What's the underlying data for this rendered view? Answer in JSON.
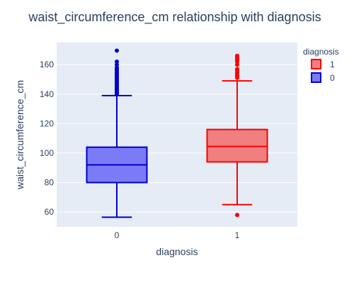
{
  "chart_data": {
    "type": "box",
    "title": "waist_circumference_cm relationship with diagnosis",
    "xlabel": "diagnosis",
    "ylabel": "waist_circumference_cm",
    "categories": [
      "0",
      "1"
    ],
    "ylim": [
      50,
      175
    ],
    "yticks": [
      60,
      80,
      100,
      120,
      140,
      160
    ],
    "grid": true,
    "legend": {
      "title": "diagnosis",
      "placement": "top-right"
    },
    "series": [
      {
        "name": "1",
        "category": "1",
        "color": "#ff0000",
        "fill": "#f08080",
        "whisker_low": 65,
        "q1": 94,
        "median": 104.5,
        "q3": 116,
        "whisker_high": 149,
        "outliers": [
          58,
          151,
          152,
          153,
          154,
          155,
          156,
          157,
          160,
          162,
          163,
          164,
          165,
          166
        ]
      },
      {
        "name": "0",
        "category": "0",
        "color": "#0000cd",
        "fill": "#7b7bf5",
        "whisker_low": 56.5,
        "q1": 80,
        "median": 92,
        "q3": 104,
        "whisker_high": 139,
        "outliers": [
          140,
          141,
          142,
          143,
          144,
          145,
          146,
          147,
          148,
          149,
          150,
          151,
          152,
          153,
          154,
          155,
          156,
          157,
          158,
          160,
          162,
          169.5
        ]
      }
    ]
  }
}
